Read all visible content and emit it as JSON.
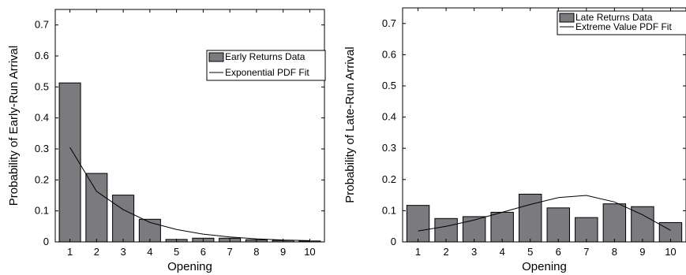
{
  "chart_data": [
    {
      "type": "bar",
      "xlabel": "Opening",
      "ylabel": "Probability of Early-Run Arrival",
      "categories": [
        "1",
        "2",
        "3",
        "4",
        "5",
        "6",
        "7",
        "8",
        "9",
        "10"
      ],
      "ylim": [
        0,
        0.75
      ],
      "yticks": [
        "0",
        "0.1",
        "0.2",
        "0.3",
        "0.4",
        "0.5",
        "0.6",
        "0.7"
      ],
      "series": [
        {
          "name": "Early Returns Data",
          "kind": "bar",
          "values": [
            0.513,
            0.221,
            0.151,
            0.073,
            0.008,
            0.012,
            0.012,
            0.007,
            0.005,
            0.003
          ]
        },
        {
          "name": "Exponential PDF Fit",
          "kind": "line",
          "values": [
            0.305,
            0.163,
            0.104,
            0.063,
            0.04,
            0.025,
            0.016,
            0.01,
            0.006,
            0.004
          ]
        }
      ],
      "legend": "top-right",
      "colors": {
        "bar": "#7a7a7f",
        "line": "#000000"
      }
    },
    {
      "type": "bar",
      "xlabel": "Opening",
      "ylabel": "Probability of Late-Run Arrival",
      "categories": [
        "1",
        "2",
        "3",
        "4",
        "5",
        "6",
        "7",
        "8",
        "9",
        "10"
      ],
      "ylim": [
        0,
        0.75
      ],
      "yticks": [
        "0",
        "0.1",
        "0.2",
        "0.3",
        "0.4",
        "0.5",
        "0.6",
        "0.7"
      ],
      "series": [
        {
          "name": "Late Returns Data",
          "kind": "bar",
          "values": [
            0.117,
            0.075,
            0.081,
            0.095,
            0.153,
            0.109,
            0.078,
            0.122,
            0.113,
            0.062
          ]
        },
        {
          "name": "Extreme Value PDF Fit",
          "kind": "line",
          "values": [
            0.035,
            0.05,
            0.07,
            0.095,
            0.12,
            0.142,
            0.149,
            0.128,
            0.087,
            0.037
          ]
        }
      ],
      "legend": "top-right",
      "colors": {
        "bar": "#7a7a7f",
        "line": "#000000"
      }
    }
  ]
}
